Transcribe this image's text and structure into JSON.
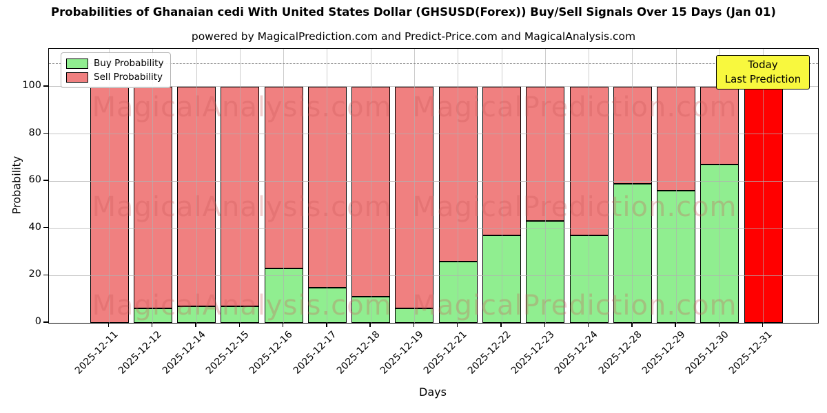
{
  "title": "Probabilities of Ghanaian cedi With United States Dollar (GHSUSD(Forex)) Buy/Sell Signals Over 15 Days (Jan 01)",
  "subtitle": "powered by MagicalPrediction.com and Predict-Price.com and MagicalAnalysis.com",
  "legend": {
    "items": [
      {
        "label": "Buy Probability",
        "color": "#90ee90"
      },
      {
        "label": "Sell Probability",
        "color": "#f08080"
      }
    ]
  },
  "annotation_box": {
    "line1": "Today",
    "line2": "Last Prediction",
    "bg_color": "#f8f83e"
  },
  "axes": {
    "ylabel": "Probability",
    "xlabel": "Days",
    "yticks": [
      0,
      20,
      40,
      60,
      80,
      100
    ]
  },
  "watermarks": {
    "left": "MagicalAnalysis.com",
    "right": "MagicalPrediction.com"
  },
  "colors": {
    "buy": "#90ee90",
    "sell": "#f08080",
    "today_bar": "#ff0000",
    "bar_edge": "#000000",
    "grid": "#b0b0b0",
    "dashed_line": "#7f7f7f",
    "annotation_bg": "#f8f83e"
  },
  "chart_data": {
    "type": "bar",
    "stacked": true,
    "title": "Probabilities of Ghanaian cedi With United States Dollar (GHSUSD(Forex)) Buy/Sell Signals Over 15 Days (Jan 01)",
    "xlabel": "Days",
    "ylabel": "Probability",
    "ylim": [
      0,
      116
    ],
    "grid": true,
    "legend_position": "upper left",
    "dashed_guide_y": 110,
    "categories": [
      "2025-12-11",
      "2025-12-12",
      "2025-12-14",
      "2025-12-15",
      "2025-12-16",
      "2025-12-17",
      "2025-12-18",
      "2025-12-19",
      "2025-12-21",
      "2025-12-22",
      "2025-12-23",
      "2025-12-24",
      "2025-12-28",
      "2025-12-29",
      "2025-12-30",
      "2025-12-31"
    ],
    "series": [
      {
        "name": "Buy Probability",
        "color": "#90ee90",
        "values": [
          0,
          6,
          7,
          7,
          23,
          15,
          11,
          6,
          26,
          37,
          43,
          37,
          59,
          56,
          67,
          0
        ]
      },
      {
        "name": "Sell Probability",
        "color": "#f08080",
        "values": [
          100,
          94,
          93,
          93,
          77,
          85,
          89,
          94,
          74,
          63,
          57,
          63,
          41,
          44,
          33,
          100
        ]
      }
    ],
    "highlight": {
      "index": 15,
      "color": "#ff0000"
    }
  }
}
